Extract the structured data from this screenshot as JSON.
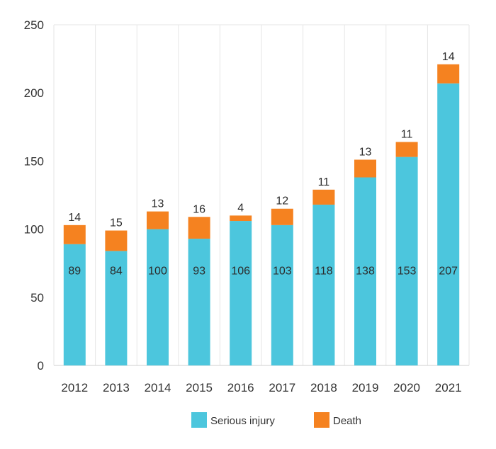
{
  "chart_data": {
    "type": "bar",
    "stacked": true,
    "title": "",
    "xlabel": "",
    "ylabel": "",
    "categories": [
      "2012",
      "2013",
      "2014",
      "2015",
      "2016",
      "2017",
      "2018",
      "2019",
      "2020",
      "2021"
    ],
    "series": [
      {
        "name": "Serious injury",
        "color": "#4cc6dd",
        "values": [
          89,
          84,
          100,
          93,
          106,
          103,
          118,
          138,
          153,
          207
        ]
      },
      {
        "name": "Death",
        "color": "#f58220",
        "values": [
          14,
          15,
          13,
          16,
          4,
          12,
          11,
          13,
          11,
          14
        ]
      }
    ],
    "ylim": [
      0,
      250
    ],
    "yticks": [
      0,
      50,
      100,
      150,
      200,
      250
    ],
    "grid": {
      "horizontal": false,
      "vertical": true
    },
    "legend": "bottom-center"
  }
}
